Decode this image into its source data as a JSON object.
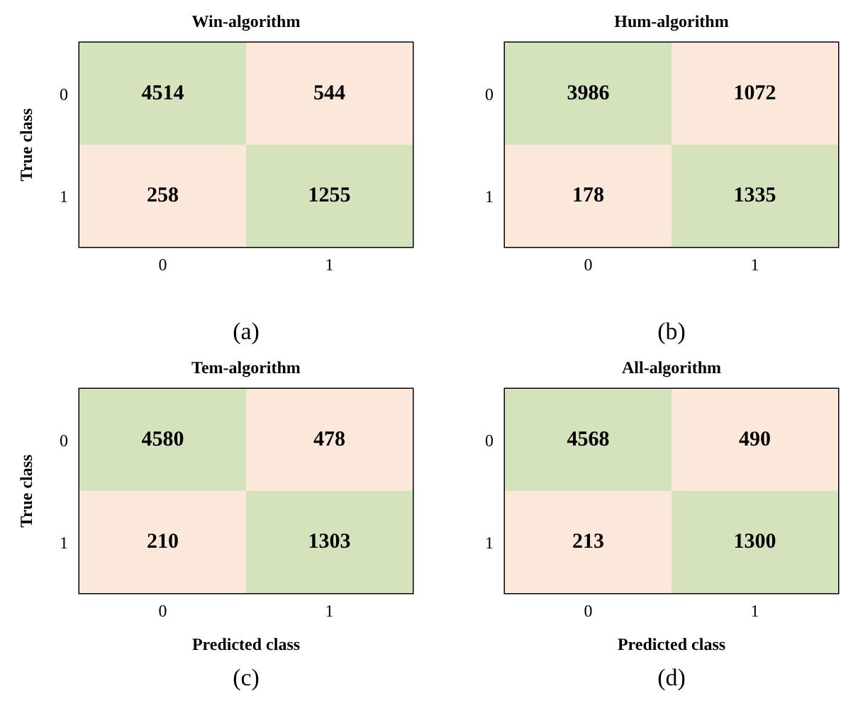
{
  "chart_data": [
    {
      "type": "heatmap",
      "title": "Win-algorithm",
      "ylabel": "True class",
      "categories": [
        "0",
        "1"
      ],
      "y_categories": [
        "0",
        "1"
      ],
      "cells": [
        [
          4514,
          544
        ],
        [
          258,
          1255
        ]
      ],
      "colors": [
        [
          "#d5e3bd",
          "#fce8da"
        ],
        [
          "#fce8da",
          "#d5e3bd"
        ]
      ],
      "data_labels": true,
      "annotations": [
        "(a)"
      ]
    },
    {
      "type": "heatmap",
      "title": "Hum-algorithm",
      "categories": [
        "0",
        "1"
      ],
      "y_categories": [
        "0",
        "1"
      ],
      "cells": [
        [
          3986,
          1072
        ],
        [
          178,
          1335
        ]
      ],
      "colors": [
        [
          "#d5e3bd",
          "#fce8da"
        ],
        [
          "#fce8da",
          "#d5e3bd"
        ]
      ],
      "data_labels": true,
      "annotations": [
        "(b)"
      ]
    },
    {
      "type": "heatmap",
      "title": "Tem-algorithm",
      "xlabel": "Predicted class",
      "ylabel": "True class",
      "categories": [
        "0",
        "1"
      ],
      "y_categories": [
        "0",
        "1"
      ],
      "cells": [
        [
          4580,
          478
        ],
        [
          210,
          1303
        ]
      ],
      "colors": [
        [
          "#d5e3bd",
          "#fce8da"
        ],
        [
          "#fce8da",
          "#d5e3bd"
        ]
      ],
      "data_labels": true,
      "annotations": [
        "(c)"
      ]
    },
    {
      "type": "heatmap",
      "title": "All-algorithm",
      "xlabel": "Predicted class",
      "categories": [
        "0",
        "1"
      ],
      "y_categories": [
        "0",
        "1"
      ],
      "cells": [
        [
          4568,
          490
        ],
        [
          213,
          1300
        ]
      ],
      "colors": [
        [
          "#d5e3bd",
          "#fce8da"
        ],
        [
          "#fce8da",
          "#d5e3bd"
        ]
      ],
      "data_labels": true,
      "annotations": [
        "(d)"
      ]
    }
  ]
}
